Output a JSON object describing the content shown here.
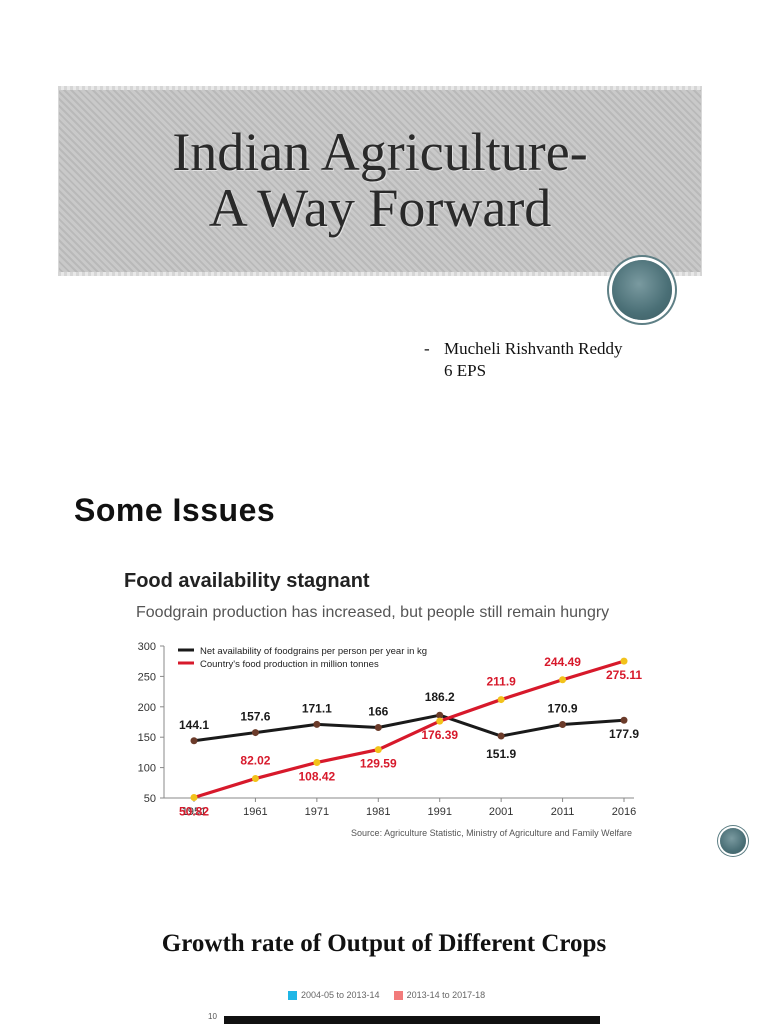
{
  "slide1": {
    "title_line1": "Indian Agriculture-",
    "title_line2": "A Way Forward",
    "author_dash": "-",
    "author_name": "Mucheli Rishvanth Reddy",
    "author_class": "6 EPS"
  },
  "slide2": {
    "heading": "Some Issues"
  },
  "chart_data": {
    "type": "line",
    "title": "Food availability stagnant",
    "subtitle": "Foodgrain production has increased, but people still remain hungry",
    "source": "Source: Agriculture Statistic, Ministry of Agriculture and Family Welfare",
    "categories": [
      "1951",
      "1961",
      "1971",
      "1981",
      "1991",
      "2001",
      "2011",
      "2016"
    ],
    "ylim": [
      50,
      300
    ],
    "yticks": [
      "300",
      "250",
      "200",
      "150",
      "100",
      "50"
    ],
    "legend_position": "top-left",
    "series": [
      {
        "name": "Net availability of foodgrains per person per year in kg",
        "color": "#1a1a1a",
        "marker_color": "#6b3b2a",
        "values": [
          144.1,
          157.6,
          171.1,
          166,
          186.2,
          151.9,
          170.9,
          177.9
        ],
        "labels": [
          "144.1",
          "157.6",
          "171.1",
          "166",
          "186.2",
          "151.9",
          "170.9",
          "177.9"
        ]
      },
      {
        "name": "Country's food production in million tonnes",
        "color": "#d7192b",
        "marker_color": "#f2c21b",
        "values": [
          50.82,
          82.02,
          108.42,
          129.59,
          176.39,
          211.9,
          244.49,
          275.11
        ],
        "labels": [
          "50.82",
          "82.02",
          "108.42",
          "129.59",
          "176.39",
          "211.9",
          "244.49",
          "275.11"
        ]
      }
    ]
  },
  "slide3": {
    "heading": "Growth rate of Output of Different Crops",
    "legend": [
      {
        "label": "2004-05 to 2013-14",
        "color": "#1fb6e6"
      },
      {
        "label": "2013-14 to 2017-18",
        "color": "#f27b7b"
      }
    ],
    "axis_tick": "10"
  }
}
